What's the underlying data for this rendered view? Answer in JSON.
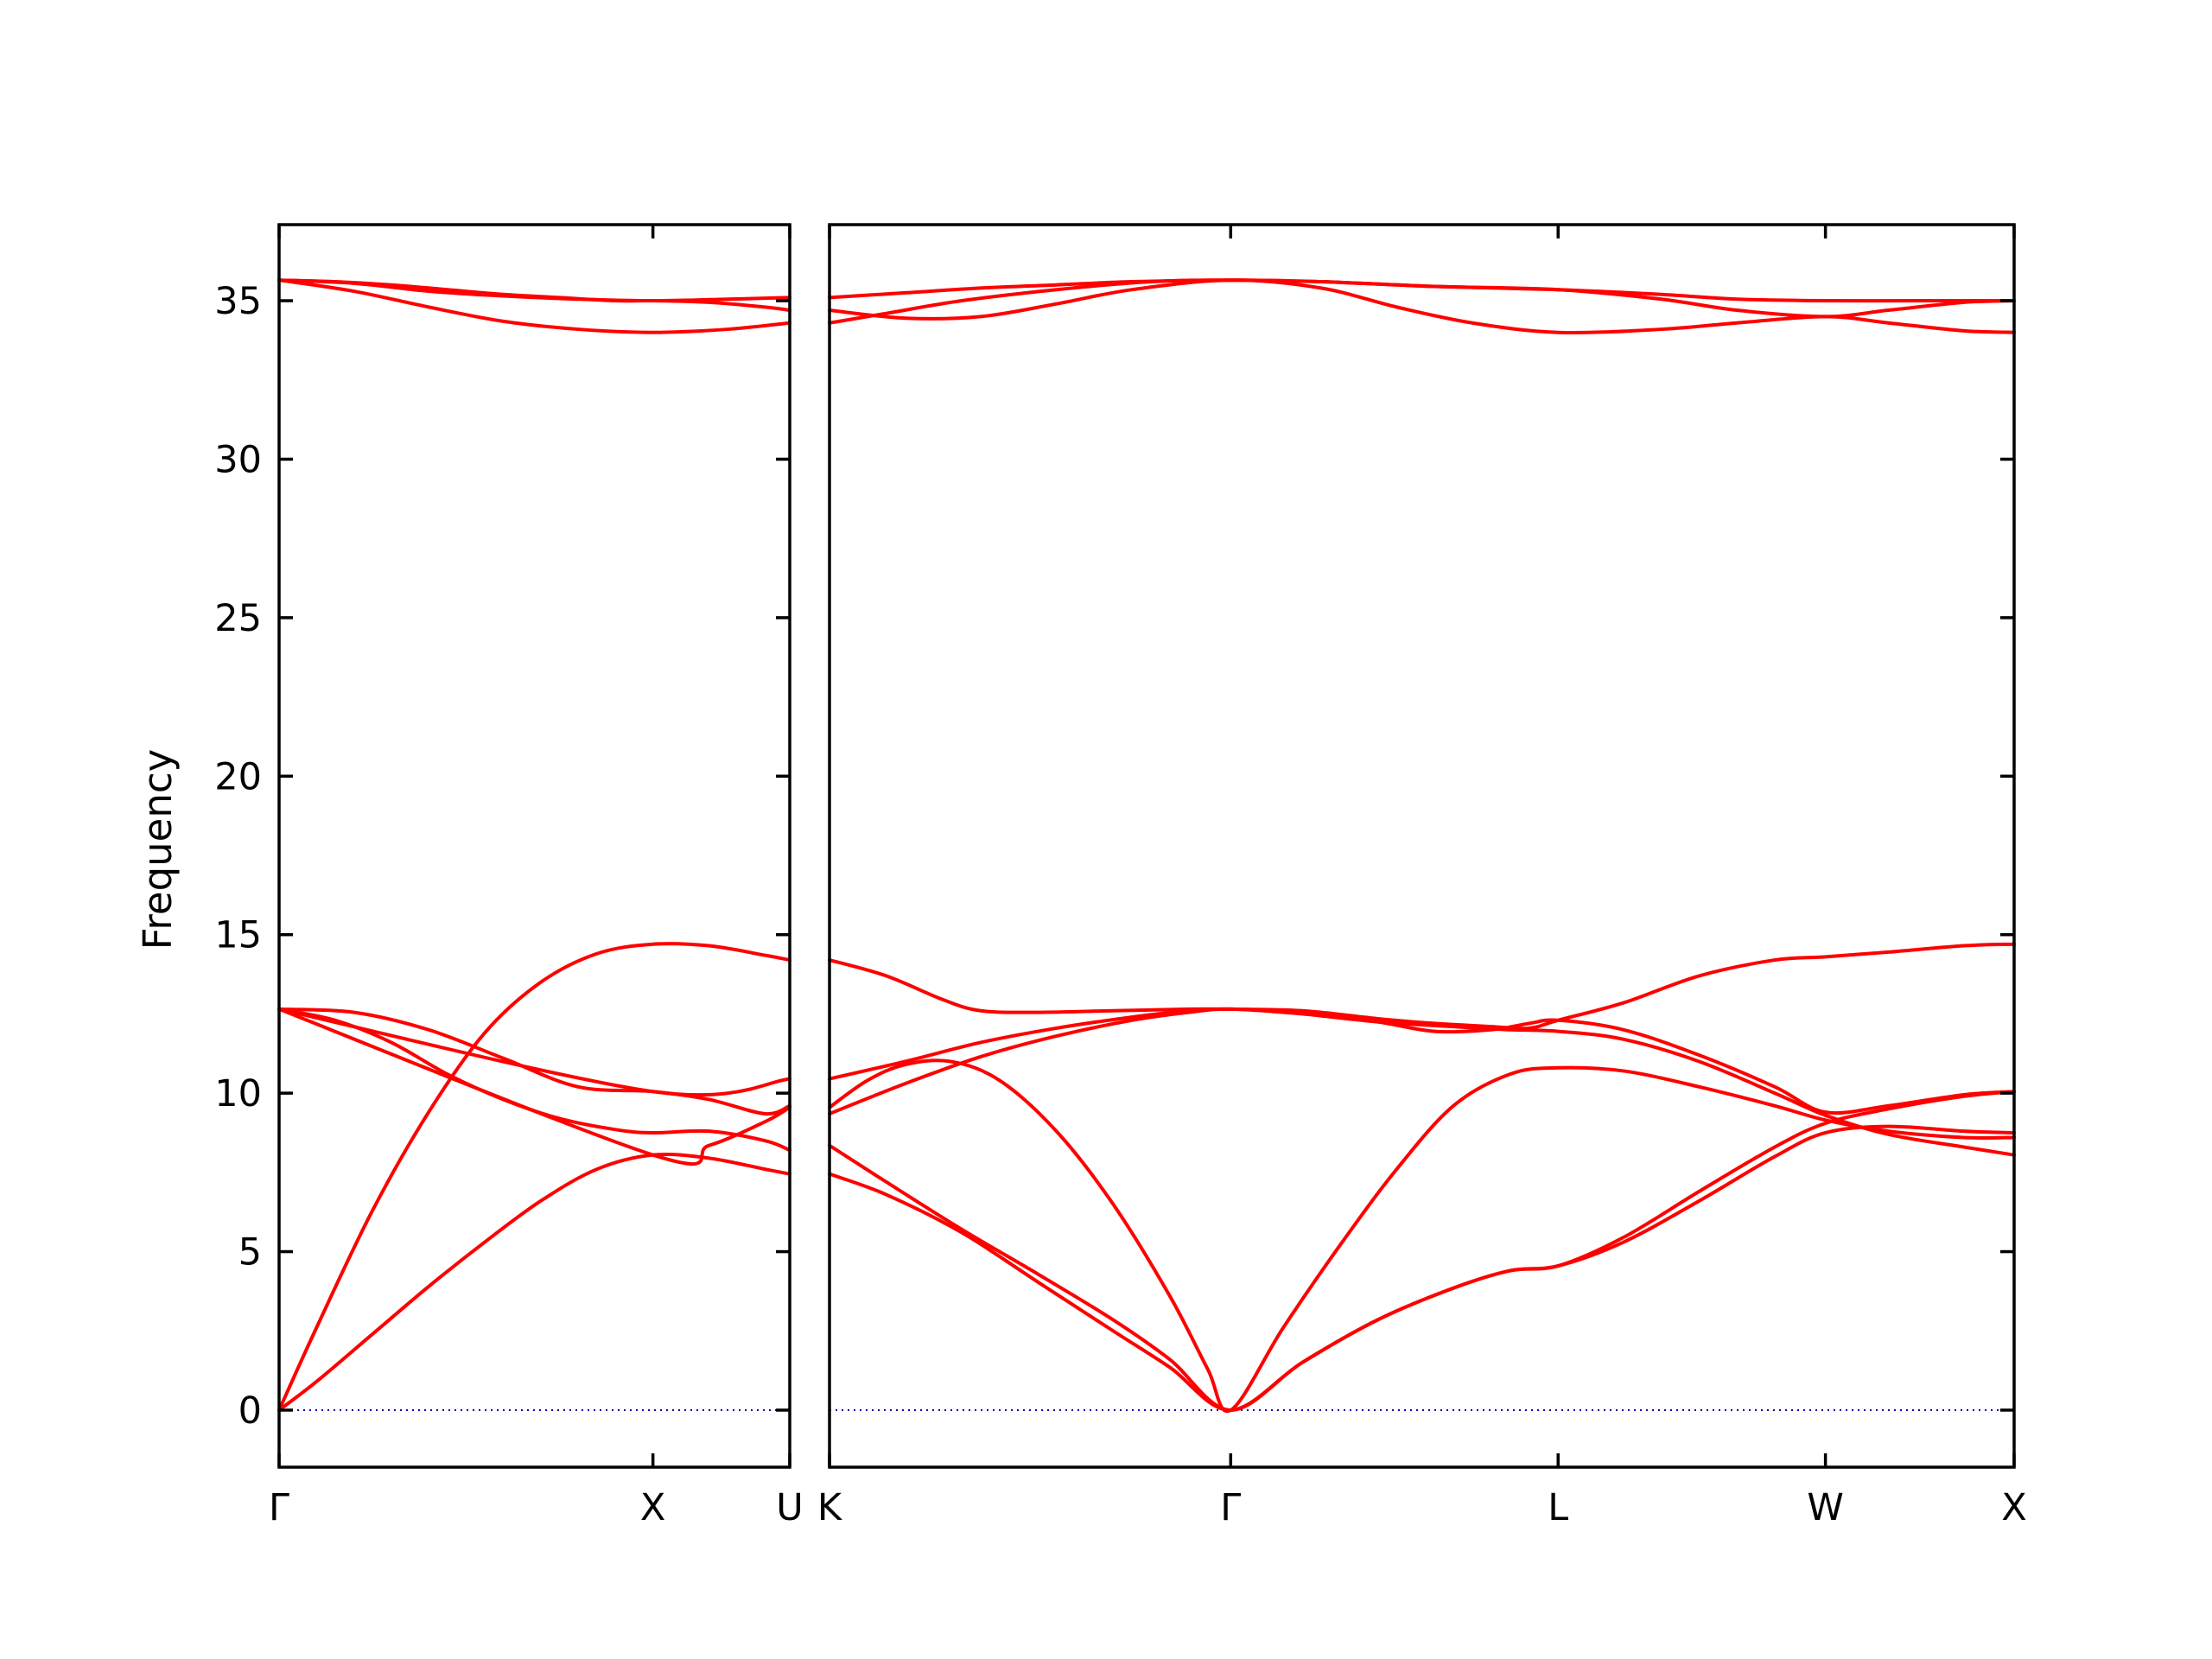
{
  "chart_data": {
    "type": "line",
    "title": "",
    "xlabel": "",
    "ylabel": "Frequency",
    "ylim": [
      -1.8,
      37.4
    ],
    "yticks": [
      0,
      5,
      10,
      15,
      20,
      25,
      30,
      35
    ],
    "grid": false,
    "legend": "none",
    "colors": {
      "band": "#ff0000",
      "zero_line": "#0000aa",
      "axes": "#000000"
    },
    "panels": [
      {
        "x_range": [
          0,
          1.366
        ],
        "ticks": [
          {
            "x": 0,
            "label": "Γ"
          },
          {
            "x": 1.0,
            "label": "X"
          },
          {
            "x": 1.366,
            "label": "U"
          }
        ],
        "bands": [
          {
            "x": [
              0,
              0.1,
              0.25,
              0.4,
              0.55,
              0.7,
              0.85,
              1.0,
              1.15,
              1.3,
              1.366
            ],
            "y": [
              0,
              0.9,
              2.4,
              3.9,
              5.3,
              6.6,
              7.6,
              8.05,
              7.95,
              7.6,
              7.45
            ]
          },
          {
            "x": [
              0,
              0.1,
              0.25,
              0.4,
              0.55,
              0.7,
              0.85,
              1.0,
              1.15,
              1.3,
              1.366
            ],
            "y": [
              0,
              2.6,
              6.3,
              9.4,
              11.9,
              13.5,
              14.4,
              14.7,
              14.65,
              14.35,
              14.2
            ]
          },
          {
            "x": [
              0,
              0.15,
              0.3,
              0.45,
              0.6,
              0.75,
              0.9,
              1.0,
              1.15,
              1.3,
              1.366
            ],
            "y": [
              12.65,
              12.3,
              11.6,
              10.6,
              9.8,
              9.2,
              8.85,
              8.75,
              8.8,
              8.5,
              8.2
            ]
          },
          {
            "x": [
              0,
              0.2,
              0.4,
              0.6,
              0.8,
              1.0,
              1.15,
              1.3,
              1.366
            ],
            "y": [
              12.65,
              12.55,
              12.0,
              11.1,
              10.2,
              10.05,
              9.8,
              9.35,
              9.6
            ]
          },
          {
            "x": [
              0,
              1.0,
              1.15,
              1.3,
              1.366
            ],
            "y": [
              12.65,
              8.05,
              8.35,
              9.1,
              9.55
            ]
          },
          {
            "x": [
              0,
              1.0,
              1.366
            ],
            "y": [
              12.65,
              10.05,
              10.45
            ]
          },
          {
            "x": [
              0,
              0.2,
              0.4,
              0.6,
              0.8,
              1.0,
              1.2,
              1.366
            ],
            "y": [
              35.65,
              35.55,
              35.3,
              35.15,
              35.05,
              35.0,
              35.05,
              35.1
            ]
          },
          {
            "x": [
              0,
              0.2,
              0.4,
              0.6,
              0.8,
              1.0,
              1.2,
              1.366
            ],
            "y": [
              35.65,
              35.3,
              34.8,
              34.35,
              34.1,
              34.0,
              34.1,
              34.3
            ]
          },
          {
            "x": [
              0,
              0.15,
              0.3,
              0.45,
              0.6,
              0.75,
              0.9,
              1.0,
              1.15,
              1.3,
              1.366
            ],
            "y": [
              35.65,
              35.6,
              35.5,
              35.35,
              35.2,
              35.1,
              35.0,
              35.0,
              34.95,
              34.8,
              34.7
            ]
          }
        ]
      },
      {
        "x_range": [
          0,
          3.133
        ],
        "ticks": [
          {
            "x": 0,
            "label": "K"
          },
          {
            "x": 1.061,
            "label": "Γ"
          },
          {
            "x": 1.927,
            "label": "L"
          },
          {
            "x": 2.634,
            "label": "W"
          },
          {
            "x": 3.133,
            "label": "X"
          }
        ],
        "bands": [
          {
            "x": [
              0,
              0.15,
              0.35,
              0.55,
              0.75,
              0.9,
              1.061,
              1.25,
              1.45,
              1.65,
              1.8,
              1.927,
              2.1,
              2.3,
              2.5,
              2.634,
              2.8,
              3.0,
              3.133
            ],
            "y": [
              7.45,
              6.8,
              5.6,
              4.05,
              2.5,
              1.35,
              0,
              1.5,
              2.85,
              3.85,
              4.4,
              4.55,
              5.3,
              6.6,
              8.0,
              8.75,
              8.95,
              8.8,
              8.75
            ]
          },
          {
            "x": [
              0,
              0.15,
              0.35,
              0.55,
              0.75,
              0.9,
              1.061,
              1.25,
              1.45,
              1.65,
              1.8,
              1.927,
              2.1,
              2.3,
              2.5,
              2.634,
              2.8,
              3.0,
              3.133
            ],
            "y": [
              8.35,
              7.2,
              5.7,
              4.3,
              2.85,
              1.6,
              0,
              1.5,
              2.85,
              3.85,
              4.4,
              4.55,
              5.45,
              6.9,
              8.3,
              9.05,
              9.5,
              9.9,
              10.05
            ]
          },
          {
            "x": [
              0,
              0.1,
              0.2,
              0.32,
              0.45,
              0.6,
              0.75,
              0.9,
              1.0,
              1.061,
              1.2,
              1.35,
              1.5,
              1.65,
              1.8,
              1.927,
              2.1,
              2.3,
              2.5,
              2.634,
              2.8,
              3.0,
              3.133
            ],
            "y": [
              9.55,
              10.4,
              10.9,
              11.0,
              10.4,
              8.8,
              6.5,
              3.6,
              1.3,
              0,
              2.6,
              5.2,
              7.6,
              9.6,
              10.6,
              10.8,
              10.7,
              10.2,
              9.6,
              9.15,
              8.8,
              8.6,
              8.6
            ]
          },
          {
            "x": [
              0,
              0.2,
              0.4,
              0.6,
              0.8,
              0.95,
              1.061,
              1.25,
              1.45,
              1.65,
              1.8,
              1.927,
              2.1,
              2.3,
              2.5,
              2.634,
              2.8,
              3.0,
              3.133
            ],
            "y": [
              9.35,
              10.3,
              11.15,
              11.8,
              12.3,
              12.55,
              12.65,
              12.5,
              12.25,
              12.1,
              12.0,
              11.95,
              11.7,
              11.0,
              10.0,
              9.3,
              8.7,
              8.3,
              8.05
            ]
          },
          {
            "x": [
              0,
              0.2,
              0.4,
              0.6,
              0.8,
              0.95,
              1.061,
              1.25,
              1.45,
              1.6,
              1.75,
              1.85,
              1.927,
              2.1,
              2.3,
              2.5,
              2.634,
              2.8,
              3.0,
              3.133
            ],
            "y": [
              10.45,
              11.0,
              11.6,
              12.05,
              12.4,
              12.6,
              12.65,
              12.55,
              12.25,
              11.95,
              12.0,
              12.2,
              12.3,
              12.0,
              11.2,
              10.2,
              9.4,
              9.6,
              9.95,
              10.05
            ]
          },
          {
            "x": [
              0,
              0.15,
              0.3,
              0.4,
              0.55,
              0.75,
              0.95,
              1.061,
              1.25,
              1.45,
              1.6,
              1.75,
              1.85,
              1.927,
              2.1,
              2.3,
              2.5,
              2.634,
              2.8,
              3.0,
              3.133
            ],
            "y": [
              14.2,
              13.7,
              12.95,
              12.6,
              12.55,
              12.6,
              12.65,
              12.65,
              12.6,
              12.35,
              12.2,
              12.1,
              12.05,
              12.3,
              12.85,
              13.7,
              14.2,
              14.3,
              14.45,
              14.65,
              14.7
            ]
          },
          {
            "x": [
              0,
              0.2,
              0.4,
              0.6,
              0.8,
              1.061,
              1.3,
              1.6,
              1.927,
              2.2,
              2.4,
              2.634,
              2.9,
              3.133
            ],
            "y": [
              35.1,
              35.25,
              35.4,
              35.5,
              35.6,
              35.65,
              35.6,
              35.45,
              35.35,
              35.2,
              35.05,
              35.0,
              35.0,
              35.0
            ]
          },
          {
            "x": [
              0,
              0.2,
              0.4,
              0.6,
              0.8,
              1.061,
              1.3,
              1.5,
              1.7,
              1.927,
              2.2,
              2.4,
              2.634,
              2.8,
              3.0,
              3.133
            ],
            "y": [
              34.7,
              34.45,
              34.5,
              34.9,
              35.35,
              35.65,
              35.4,
              34.8,
              34.3,
              34.0,
              34.1,
              34.3,
              34.5,
              34.3,
              34.05,
              34.0
            ]
          },
          {
            "x": [
              0,
              0.15,
              0.35,
              0.6,
              0.85,
              1.061,
              1.3,
              1.6,
              1.927,
              2.2,
              2.4,
              2.634,
              2.8,
              3.0,
              3.133
            ],
            "y": [
              34.3,
              34.6,
              35.0,
              35.35,
              35.6,
              35.65,
              35.6,
              35.45,
              35.35,
              35.05,
              34.7,
              34.5,
              34.7,
              34.95,
              35.0
            ]
          }
        ]
      }
    ]
  }
}
